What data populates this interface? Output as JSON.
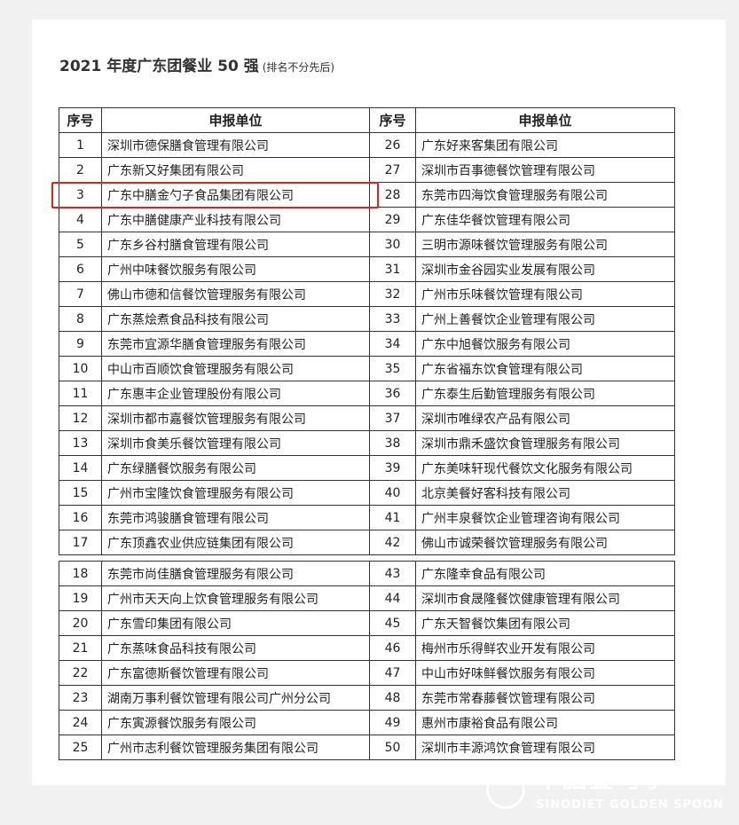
{
  "title": {
    "main": "2021 年度广东团餐业 50 强",
    "note": "(排名不分先后)"
  },
  "table": {
    "headers": {
      "no": "序号",
      "name": "申报单位"
    },
    "rows": [
      {
        "left": {
          "no": "1",
          "name": "深圳市德保膳食管理有限公司"
        },
        "right": {
          "no": "26",
          "name": "广东好来客集团有限公司"
        }
      },
      {
        "left": {
          "no": "2",
          "name": "广东新又好集团有限公司"
        },
        "right": {
          "no": "27",
          "name": "深圳市百事德餐饮管理有限公司"
        }
      },
      {
        "left": {
          "no": "3",
          "name": "广东中膳金勺子食品集团有限公司"
        },
        "right": {
          "no": "28",
          "name": "东莞市四海饮食管理服务有限公司"
        }
      },
      {
        "left": {
          "no": "4",
          "name": "广东中膳健康产业科技有限公司"
        },
        "right": {
          "no": "29",
          "name": "广东佳华餐饮管理有限公司"
        }
      },
      {
        "left": {
          "no": "5",
          "name": "广东乡谷村膳食管理有限公司"
        },
        "right": {
          "no": "30",
          "name": "三明市源味餐饮管理服务有限公司"
        }
      },
      {
        "left": {
          "no": "6",
          "name": "广州中味餐饮服务有限公司"
        },
        "right": {
          "no": "31",
          "name": "深圳市金谷园实业发展有限公司"
        }
      },
      {
        "left": {
          "no": "7",
          "name": "佛山市德和信餐饮管理服务有限公司"
        },
        "right": {
          "no": "32",
          "name": "广州市乐味餐饮管理有限公司"
        }
      },
      {
        "left": {
          "no": "8",
          "name": "广东蒸烩煮食品科技有限公司"
        },
        "right": {
          "no": "33",
          "name": "广州上善餐饮企业管理有限公司"
        }
      },
      {
        "left": {
          "no": "9",
          "name": "东莞市宜源华膳食管理服务有限公司"
        },
        "right": {
          "no": "34",
          "name": "广东中旭餐饮服务有限公司"
        }
      },
      {
        "left": {
          "no": "10",
          "name": "中山市百顺饮食管理服务有限公司"
        },
        "right": {
          "no": "35",
          "name": "广东省福东饮食管理有限公司"
        }
      },
      {
        "left": {
          "no": "11",
          "name": "广东惠丰企业管理股份有限公司"
        },
        "right": {
          "no": "36",
          "name": "广东泰生后勤管理服务有限公司"
        }
      },
      {
        "left": {
          "no": "12",
          "name": "深圳市都市嘉餐饮管理服务有限公司"
        },
        "right": {
          "no": "37",
          "name": "深圳市唯绿农产品有限公司"
        }
      },
      {
        "left": {
          "no": "13",
          "name": "深圳市食美乐餐饮管理有限公司"
        },
        "right": {
          "no": "38",
          "name": "深圳市鼎禾盛饮食管理服务有限公司"
        }
      },
      {
        "left": {
          "no": "14",
          "name": "广东绿膳餐饮服务有限公司"
        },
        "right": {
          "no": "39",
          "name": "广东美味轩现代餐饮文化服务有限公司"
        }
      },
      {
        "left": {
          "no": "15",
          "name": "广州市宝隆饮食管理服务有限公司"
        },
        "right": {
          "no": "40",
          "name": "北京美餐好客科技有限公司"
        }
      },
      {
        "left": {
          "no": "16",
          "name": "东莞市鸿骏膳食管理有限公司"
        },
        "right": {
          "no": "41",
          "name": "广州丰泉餐饮企业管理咨询有限公司"
        }
      },
      {
        "left": {
          "no": "17",
          "name": "广东顶鑫农业供应链集团有限公司"
        },
        "right": {
          "no": "42",
          "name": "佛山市诚荣餐饮管理服务有限公司"
        }
      },
      {
        "left": {
          "no": "18",
          "name": "东莞市尚佳膳食管理服务有限公司"
        },
        "right": {
          "no": "43",
          "name": "广东隆幸食品有限公司"
        }
      },
      {
        "left": {
          "no": "19",
          "name": "广州市天天向上饮食管理服务有限公司"
        },
        "right": {
          "no": "44",
          "name": "深圳市食晟隆餐饮健康管理有限公司"
        }
      },
      {
        "left": {
          "no": "20",
          "name": "广东雪印集团有限公司"
        },
        "right": {
          "no": "45",
          "name": "广东天智餐饮集团有限公司"
        }
      },
      {
        "left": {
          "no": "21",
          "name": "广东蒸味食品科技有限公司"
        },
        "right": {
          "no": "46",
          "name": "梅州市乐得鲜农业开发有限公司"
        }
      },
      {
        "left": {
          "no": "22",
          "name": "广东富德斯餐饮管理有限公司"
        },
        "right": {
          "no": "47",
          "name": "中山市好味鲜餐饮服务有限公司"
        }
      },
      {
        "left": {
          "no": "23",
          "name": "湖南万事利餐饮管理有限公司广州分公司"
        },
        "right": {
          "no": "48",
          "name": "东莞市常春藤餐饮管理有限公司"
        }
      },
      {
        "left": {
          "no": "24",
          "name": "广东寅源餐饮服务有限公司"
        },
        "right": {
          "no": "49",
          "name": "惠州市康裕食品有限公司"
        }
      },
      {
        "left": {
          "no": "25",
          "name": "广州市志利餐饮管理服务集团有限公司"
        },
        "right": {
          "no": "50",
          "name": "深圳市丰源鸿饮食管理有限公司"
        }
      }
    ],
    "highlighted_row": 3,
    "highlight_color": "#e8201c"
  },
  "watermark": {
    "cn": "中膳金勺子",
    "en": "SINODIET GOLDEN SPOON"
  }
}
